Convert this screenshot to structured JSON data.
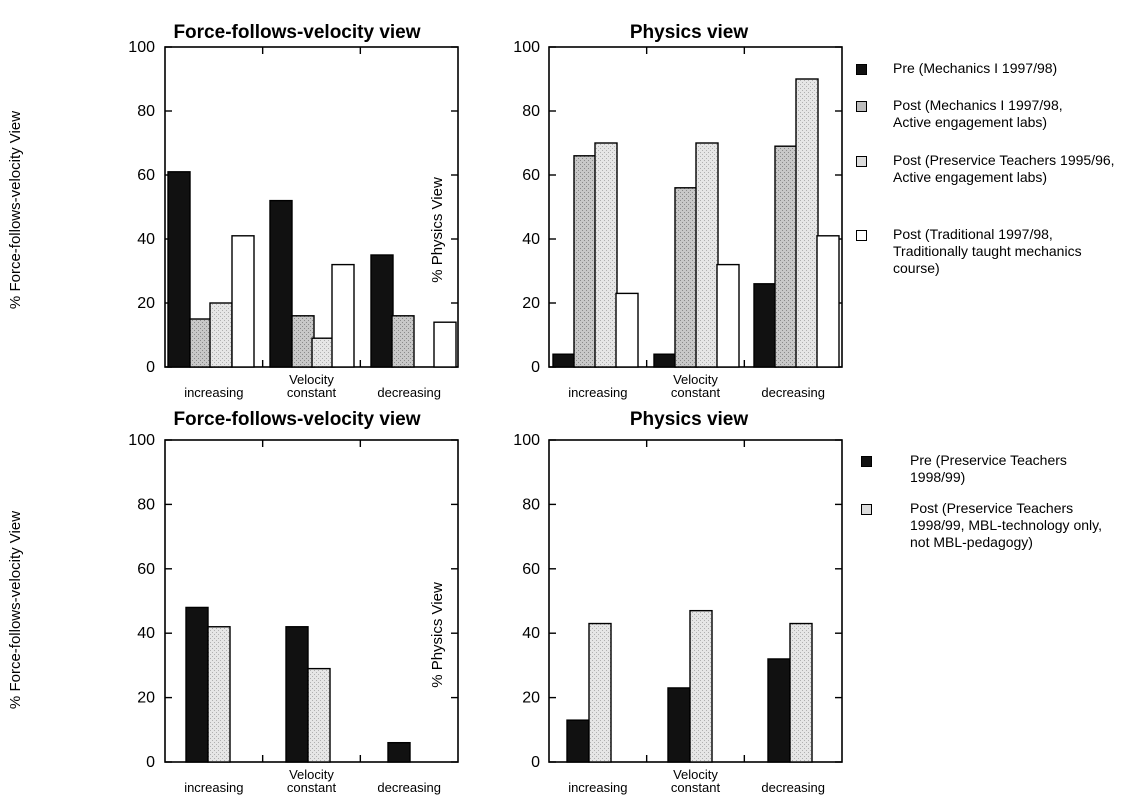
{
  "legend_top": [
    {
      "label": "Pre (Mechanics I 1997/98)",
      "fill": "#111111"
    },
    {
      "label": "Post (Mechanics I 1997/98, Active engagement labs)",
      "fill": "#bdbdbd"
    },
    {
      "label": "Post (Preservice Teachers 1995/96, Active engagement labs)",
      "fill": "#dcdcdc"
    },
    {
      "label": "Post (Traditional 1997/98, Traditionally taught mechanics course)",
      "fill": "#ffffff"
    }
  ],
  "legend_bottom": [
    {
      "label": "Pre (Preservice Teachers 1998/99)",
      "fill": "#111111"
    },
    {
      "label": "Post (Preservice Teachers 1998/99, MBL-technology only, not MBL-pedagogy)",
      "fill": "#dcdcdc"
    }
  ],
  "chart_data": [
    {
      "type": "bar",
      "title": "Force-follows-velocity view",
      "ylabel": "% Force-follows-velocity View",
      "ylim": [
        0,
        100
      ],
      "yticks": [
        0,
        20,
        40,
        60,
        80,
        100
      ],
      "categories": [
        "increasing",
        "Velocity constant",
        "decreasing"
      ],
      "series": [
        {
          "name": "Pre (Mechanics I 1997/98)",
          "values": [
            61,
            52,
            35
          ],
          "color": "#111111"
        },
        {
          "name": "Post (Mechanics I 1997/98, Active engagement labs)",
          "values": [
            15,
            16,
            16
          ],
          "color": "#bdbdbd"
        },
        {
          "name": "Post (Preservice Teachers 1995/96, Active engagement labs)",
          "values": [
            20,
            9,
            0
          ],
          "color": "#dcdcdc"
        },
        {
          "name": "Post (Traditional 1997/98, Traditionally taught mechanics course)",
          "values": [
            41,
            32,
            14
          ],
          "color": "#ffffff"
        }
      ]
    },
    {
      "type": "bar",
      "title": "Physics view",
      "ylabel": "% Physics View",
      "ylim": [
        0,
        100
      ],
      "yticks": [
        0,
        20,
        40,
        60,
        80,
        100
      ],
      "categories": [
        "increasing",
        "Velocity constant",
        "decreasing"
      ],
      "series": [
        {
          "name": "Pre (Mechanics I 1997/98)",
          "values": [
            4,
            4,
            26
          ],
          "color": "#111111"
        },
        {
          "name": "Post (Mechanics I 1997/98, Active engagement labs)",
          "values": [
            66,
            56,
            69
          ],
          "color": "#bdbdbd"
        },
        {
          "name": "Post (Preservice Teachers 1995/96, Active engagement labs)",
          "values": [
            70,
            70,
            90
          ],
          "color": "#dcdcdc"
        },
        {
          "name": "Post (Traditional 1997/98, Traditionally taught mechanics course)",
          "values": [
            23,
            32,
            41
          ],
          "color": "#ffffff"
        }
      ]
    },
    {
      "type": "bar",
      "title": "Force-follows-velocity view",
      "ylabel": "% Force-follows-velocity View",
      "ylim": [
        0,
        100
      ],
      "yticks": [
        0,
        20,
        40,
        60,
        80,
        100
      ],
      "categories": [
        "increasing",
        "Velocity constant",
        "decreasing"
      ],
      "series": [
        {
          "name": "Pre (Preservice Teachers 1998/99)",
          "values": [
            48,
            42,
            6
          ],
          "color": "#111111"
        },
        {
          "name": "Post (Preservice Teachers 1998/99, MBL-technology only, not MBL-pedagogy)",
          "values": [
            42,
            29,
            0
          ],
          "color": "#dcdcdc"
        }
      ]
    },
    {
      "type": "bar",
      "title": "Physics view",
      "ylabel": "% Physics View",
      "ylim": [
        0,
        100
      ],
      "yticks": [
        0,
        20,
        40,
        60,
        80,
        100
      ],
      "categories": [
        "increasing",
        "Velocity constant",
        "decreasing"
      ],
      "series": [
        {
          "name": "Pre (Preservice Teachers 1998/99)",
          "values": [
            13,
            23,
            32
          ],
          "color": "#111111"
        },
        {
          "name": "Post (Preservice Teachers 1998/99, MBL-technology only, not MBL-pedagogy)",
          "values": [
            43,
            47,
            43
          ],
          "color": "#dcdcdc"
        }
      ]
    }
  ]
}
